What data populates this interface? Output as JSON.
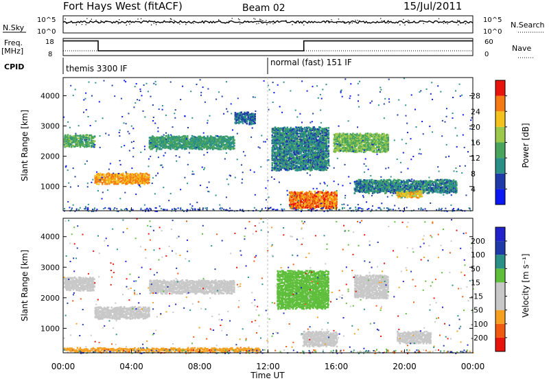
{
  "header": {
    "station": "Fort Hays West (fitACF)",
    "beam": "Beam 02",
    "date": "15/Jul/2011"
  },
  "top_panels": {
    "nsky_label": "N.Sky",
    "nsearch_label": "N.Search",
    "noise_ticks": [
      "10^5",
      "10^0"
    ],
    "freq_label": "Freq.",
    "freq_unit": "[MHz]",
    "freq_ticks": [
      "18",
      "8"
    ],
    "nave_label": "Nave",
    "nave_ticks": [
      "60",
      "0"
    ],
    "cpid_label": "CPID",
    "cpid_segments": [
      {
        "label": "themis 3300 IF",
        "start_hour": 0
      },
      {
        "label": "normal (fast) 151 IF",
        "start_hour": 12
      }
    ],
    "freq_trace": [
      {
        "hour": 0,
        "mhz": 16.5
      },
      {
        "hour": 2.05,
        "mhz": 16.5
      },
      {
        "hour": 2.05,
        "mhz": 10.5
      },
      {
        "hour": 14.1,
        "mhz": 10.5
      },
      {
        "hour": 14.1,
        "mhz": 16.5
      },
      {
        "hour": 24,
        "mhz": 16.5
      }
    ]
  },
  "colors": {
    "scale_power": [
      "#0b18f4",
      "#1f3aa8",
      "#2a8f86",
      "#49a55b",
      "#9cc84b",
      "#f3c21c",
      "#f57a12",
      "#e8140b"
    ],
    "scale_velocity": [
      "#e8140b",
      "#f05a10",
      "#f5a020",
      "#c8c8c8",
      "#c8c8c8",
      "#5fbf3c",
      "#2a8f86",
      "#1f3aa8",
      "#2222cc"
    ]
  },
  "chart_data": [
    {
      "type": "heatmap",
      "name": "power",
      "x": {
        "label": "Time UT",
        "range": [
          0,
          24
        ]
      },
      "y": {
        "label": "Slant Range [km]",
        "range": [
          200,
          4600
        ],
        "ticks": [
          1000,
          2000,
          3000,
          4000
        ]
      },
      "colorbar": {
        "label": "Power [dB]",
        "ticks": [
          "4",
          "8",
          "12",
          "16",
          "20",
          "24",
          "28"
        ],
        "range": [
          0,
          32
        ]
      },
      "regions": [
        {
          "t0": 0.0,
          "t1": 1.8,
          "r_center": 2550,
          "r_width": 350,
          "value": 14
        },
        {
          "t0": 1.8,
          "t1": 5.0,
          "r_center": 1300,
          "r_width": 300,
          "value": 24
        },
        {
          "t0": 5.0,
          "t1": 10.0,
          "r_center": 2500,
          "r_width": 400,
          "value": 12
        },
        {
          "t0": 10.0,
          "t1": 11.2,
          "r_center": 3300,
          "r_width": 350,
          "value": 8
        },
        {
          "t0": 12.2,
          "t1": 15.5,
          "r_center": 2300,
          "r_width": 1400,
          "value": 10
        },
        {
          "t0": 13.2,
          "t1": 16.0,
          "r_center": 600,
          "r_width": 550,
          "value": 26
        },
        {
          "t0": 15.8,
          "t1": 19.0,
          "r_center": 2500,
          "r_width": 600,
          "value": 16
        },
        {
          "t0": 17.0,
          "t1": 23.0,
          "r_center": 1050,
          "r_width": 400,
          "value": 10
        },
        {
          "t0": 19.5,
          "t1": 21.0,
          "r_center": 800,
          "r_width": 200,
          "value": 22
        }
      ]
    },
    {
      "type": "heatmap",
      "name": "velocity",
      "x": {
        "label": "Time UT",
        "range": [
          0,
          24
        ],
        "ticks": [
          "00:00",
          "04:00",
          "08:00",
          "12:00",
          "16:00",
          "20:00",
          "00:00"
        ]
      },
      "y": {
        "label": "Slant Range [km]",
        "range": [
          200,
          4600
        ],
        "ticks": [
          1000,
          2000,
          3000,
          4000
        ]
      },
      "colorbar": {
        "label": "Velocity [m s⁻¹]",
        "ticks": [
          "-200",
          "-100",
          "-50",
          "-15",
          "15",
          "50",
          "100",
          "200"
        ]
      },
      "regions": [
        {
          "t0": 0.0,
          "t1": 1.8,
          "r_center": 2500,
          "r_width": 400,
          "value": 0
        },
        {
          "t0": 1.8,
          "t1": 5.0,
          "r_center": 1550,
          "r_width": 350,
          "value": 0
        },
        {
          "t0": 5.0,
          "t1": 10.0,
          "r_center": 2400,
          "r_width": 400,
          "value": -40
        },
        {
          "t0": 12.5,
          "t1": 15.5,
          "r_center": 2300,
          "r_width": 1200,
          "value": 30
        },
        {
          "t0": 14.0,
          "t1": 16.0,
          "r_center": 700,
          "r_width": 450,
          "value": 0
        },
        {
          "t0": 17.0,
          "t1": 19.0,
          "r_center": 2400,
          "r_width": 700,
          "value": 0
        },
        {
          "t0": 19.5,
          "t1": 21.5,
          "r_center": 750,
          "r_width": 350,
          "value": 0
        },
        {
          "t0": 0.0,
          "t1": 11.5,
          "r_center": 350,
          "r_width": 100,
          "value": -60
        }
      ]
    }
  ]
}
